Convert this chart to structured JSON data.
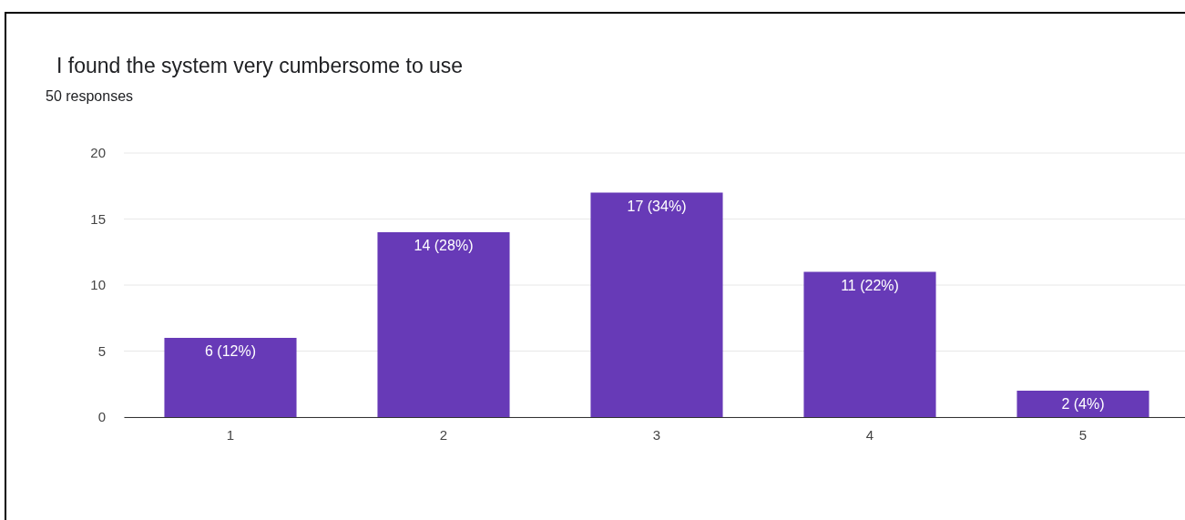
{
  "chart_data": {
    "type": "bar",
    "title": "I found the system very cumbersome to use",
    "subtitle": "50 responses",
    "categories": [
      "1",
      "2",
      "3",
      "4",
      "5"
    ],
    "values": [
      6,
      14,
      17,
      11,
      2
    ],
    "value_labels": [
      "6 (12%)",
      "14 (28%)",
      "17 (34%)",
      "11 (22%)",
      "2 (4%)"
    ],
    "color": "#673ab7",
    "ylim": [
      0,
      20
    ],
    "yticks": [
      0,
      5,
      10,
      15,
      20
    ],
    "grid": "y"
  }
}
